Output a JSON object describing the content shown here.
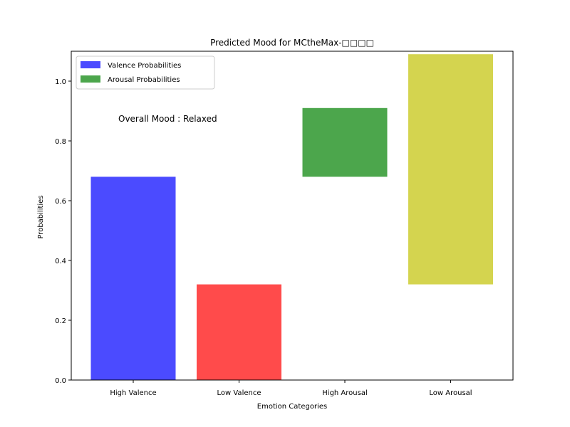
{
  "chart_data": {
    "type": "bar",
    "title": "Predicted Mood for MCtheMax-□□□□",
    "xlabel": "Emotion Categories",
    "ylabel": "Probabilities",
    "ylim": [
      0,
      1.1
    ],
    "yticks": [
      "0.0",
      "0.2",
      "0.4",
      "0.6",
      "0.8",
      "1.0"
    ],
    "categories": [
      "High Valence",
      "Low Valence",
      "High Arousal",
      "Low Arousal"
    ],
    "bars": [
      {
        "category": "High Valence",
        "bottom": 0.0,
        "value": 0.68,
        "color": "#4b4bff"
      },
      {
        "category": "Low Valence",
        "bottom": 0.0,
        "value": 0.32,
        "color": "#ff4b4b"
      },
      {
        "category": "High Arousal",
        "bottom": 0.68,
        "value": 0.23,
        "color": "#4ca64c"
      },
      {
        "category": "Low Arousal",
        "bottom": 0.32,
        "value": 0.77,
        "color": "#d4d44f"
      }
    ],
    "legend": {
      "placement": "top-left",
      "entries": [
        {
          "label": "Valence Probabilities",
          "color": "#4b4bff"
        },
        {
          "label": "Arousal Probabilities",
          "color": "#4ca64c"
        }
      ]
    },
    "annotation": "Overall Mood : Relaxed",
    "grid": false
  }
}
